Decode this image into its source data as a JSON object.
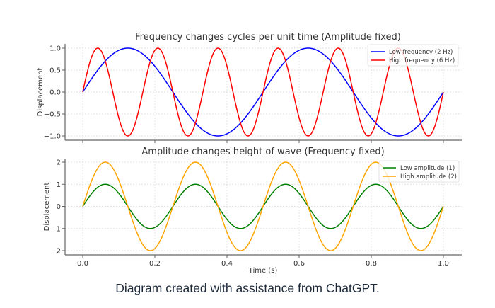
{
  "caption": "Diagram created with assistance from ChatGPT.",
  "chart_data": [
    {
      "type": "line",
      "title": "Frequency changes cycles per unit time (Amplitude fixed)",
      "xlabel": "",
      "ylabel": "Displacement",
      "xlim": [
        0.0,
        1.0
      ],
      "ylim": [
        -1.0,
        1.0
      ],
      "xticks": [
        0.0,
        0.2,
        0.4,
        0.6,
        0.8,
        1.0
      ],
      "xtick_labels_visible": false,
      "yticks": [
        1.0,
        0.5,
        0.0,
        -0.5,
        -1.0
      ],
      "ytick_labels": [
        "1.0",
        "0.5",
        "0.0",
        "−0.5",
        "−1.0"
      ],
      "grid": true,
      "legend_position": "top-right",
      "series": [
        {
          "name": "Low frequency (2 Hz)",
          "function": "sin",
          "amplitude": 1,
          "frequency_hz": 2,
          "color": "#0000ff"
        },
        {
          "name": "High frequency (6 Hz)",
          "function": "sin",
          "amplitude": 1,
          "frequency_hz": 6,
          "color": "#ff0000"
        }
      ]
    },
    {
      "type": "line",
      "title": "Amplitude changes height of wave (Frequency fixed)",
      "xlabel": "Time (s)",
      "ylabel": "Displacement",
      "xlim": [
        0.0,
        1.0
      ],
      "ylim": [
        -2.0,
        2.0
      ],
      "xticks": [
        0.0,
        0.2,
        0.4,
        0.6,
        0.8,
        1.0
      ],
      "xtick_labels": [
        "0.0",
        "0.2",
        "0.4",
        "0.6",
        "0.8",
        "1.0"
      ],
      "xtick_labels_visible": true,
      "yticks": [
        2,
        1,
        0,
        -1,
        -2
      ],
      "ytick_labels": [
        "2",
        "1",
        "0",
        "−1",
        "−2"
      ],
      "grid": true,
      "legend_position": "top-right",
      "series": [
        {
          "name": "Low amplitude (1)",
          "function": "sin",
          "amplitude": 1,
          "frequency_hz": 4,
          "color": "#008000"
        },
        {
          "name": "High amplitude (2)",
          "function": "sin",
          "amplitude": 2,
          "frequency_hz": 4,
          "color": "#ffa500"
        }
      ]
    }
  ]
}
